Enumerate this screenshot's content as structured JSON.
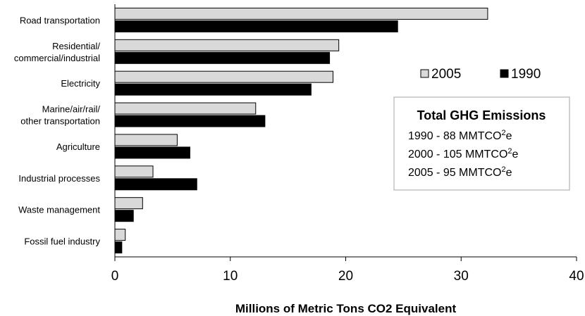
{
  "chart_data": {
    "type": "bar",
    "orientation": "horizontal",
    "categories": [
      [
        "Road transportation"
      ],
      [
        "Residential/",
        "commercial/industrial"
      ],
      [
        "Electricity"
      ],
      [
        "Marine/air/rail/",
        "other transportation"
      ],
      [
        "Agriculture"
      ],
      [
        "Industrial processes"
      ],
      [
        "Waste management"
      ],
      [
        "Fossil fuel industry"
      ]
    ],
    "series": [
      {
        "name": "2005",
        "color": "#d9d9d9",
        "values": [
          32.3,
          19.4,
          18.9,
          12.2,
          5.4,
          3.3,
          2.4,
          0.9
        ]
      },
      {
        "name": "1990",
        "color": "#000000",
        "values": [
          24.5,
          18.6,
          17.0,
          13.0,
          6.5,
          7.1,
          1.6,
          0.6
        ]
      }
    ],
    "xlabel": "Millions of Metric Tons CO2 Equivalent",
    "xlim": [
      0,
      40
    ],
    "xticks": [
      "0",
      "10",
      "20",
      "30",
      "40"
    ],
    "grid": false,
    "legend_position": "right"
  },
  "info_box": {
    "title": "Total GHG Emissions",
    "lines": [
      {
        "prefix": "1990 - 88 MMTCO",
        "sup": "2",
        "suffix": "e"
      },
      {
        "prefix": "2000 - 105 MMTCO",
        "sup": "2",
        "suffix": "e"
      },
      {
        "prefix": "2005 - 95 MMTCO",
        "sup": "2",
        "suffix": "e"
      }
    ]
  }
}
